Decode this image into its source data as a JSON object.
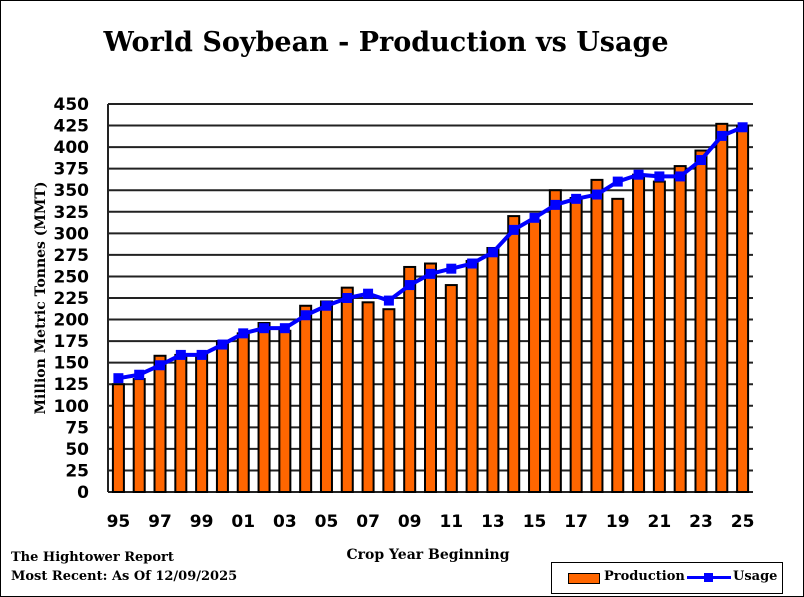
{
  "chart_data": {
    "type": "bar+line",
    "title": "World Soybean - Production vs Usage",
    "xlabel": "Crop Year Beginning",
    "ylabel": "Million Metric Tonnes (MMT)",
    "ylim": [
      0,
      450
    ],
    "yticks": [
      0,
      25,
      50,
      75,
      100,
      125,
      150,
      175,
      200,
      225,
      250,
      275,
      300,
      325,
      350,
      375,
      400,
      425,
      450
    ],
    "grid": true,
    "legend_position": "bottom-right",
    "categories": [
      "95",
      "96",
      "97",
      "98",
      "99",
      "00",
      "01",
      "02",
      "03",
      "04",
      "05",
      "06",
      "07",
      "08",
      "09",
      "10",
      "11",
      "12",
      "13",
      "14",
      "15",
      "16",
      "17",
      "18",
      "19",
      "20",
      "21",
      "22",
      "23",
      "24",
      "25"
    ],
    "xtick_labels": [
      "95",
      "97",
      "99",
      "01",
      "03",
      "05",
      "07",
      "09",
      "11",
      "13",
      "15",
      "17",
      "19",
      "21",
      "23",
      "25"
    ],
    "series": [
      {
        "name": "Production",
        "type": "bar",
        "color": "#FF6600",
        "values": [
          125,
          131,
          158,
          159,
          160,
          175,
          184,
          196,
          187,
          216,
          221,
          237,
          220,
          212,
          261,
          265,
          240,
          268,
          283,
          320,
          315,
          350,
          341,
          362,
          340,
          368,
          360,
          378,
          396,
          427,
          425
        ]
      },
      {
        "name": "Usage",
        "type": "line",
        "color": "#0000FF",
        "values": [
          132,
          136,
          147,
          159,
          159,
          171,
          184,
          190,
          190,
          205,
          216,
          225,
          230,
          222,
          240,
          253,
          259,
          265,
          278,
          304,
          318,
          333,
          340,
          345,
          360,
          368,
          366,
          366,
          385,
          413,
          423
        ]
      }
    ]
  },
  "footer": {
    "source": "The Hightower Report",
    "date": "Most Recent: As Of 12/09/2025"
  }
}
